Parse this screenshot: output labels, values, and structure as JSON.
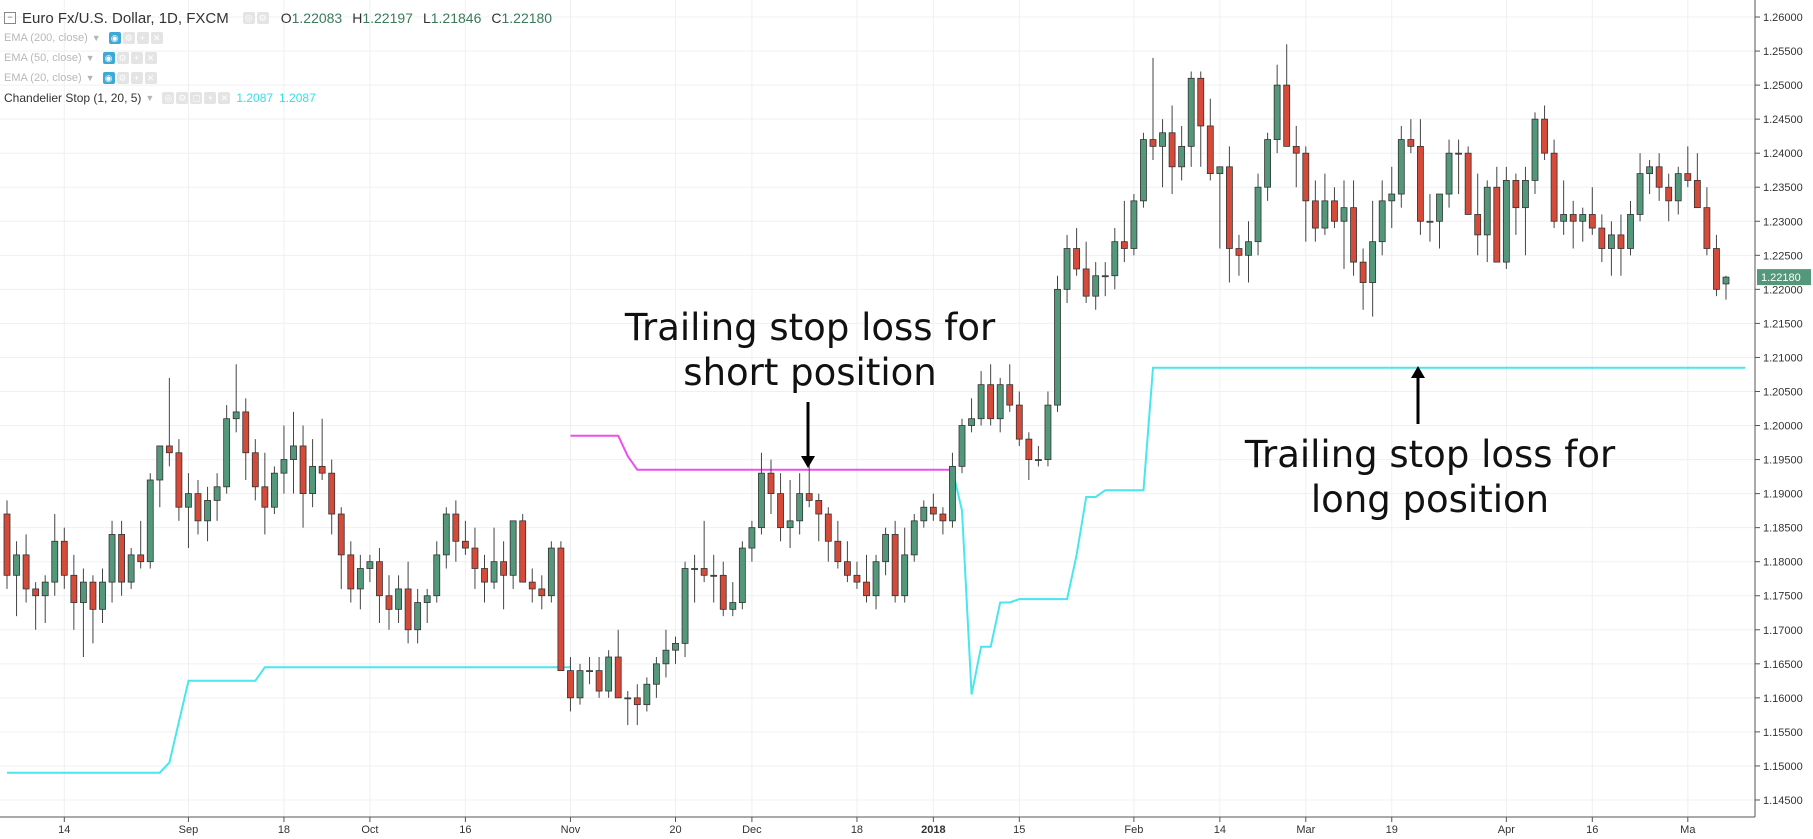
{
  "header": {
    "symbol": "Euro Fx/U.S. Dollar, 1D, FXCM",
    "ohlc": {
      "o_label": "O",
      "o": "1.22083",
      "h_label": "H",
      "h": "1.22197",
      "l_label": "L",
      "l": "1.21846",
      "c_label": "C",
      "c": "1.22180"
    },
    "indicators": [
      {
        "label": "EMA (200, close)"
      },
      {
        "label": "EMA (50, close)"
      },
      {
        "label": "EMA (20, close)"
      }
    ],
    "chandelier": {
      "label": "Chandelier Stop (1, 20, 5)",
      "value1": "1.2087",
      "value2": "1.2087"
    }
  },
  "annotations": {
    "short_line1": "Trailing stop loss for",
    "short_line2": "short position",
    "long_line1": "Trailing stop loss for",
    "long_line2": "long position"
  },
  "colors": {
    "up": "#53987a",
    "down": "#d64a3a",
    "long_stop": "#48e6ee",
    "short_stop": "#ee4eee",
    "grid": "#eef0f3",
    "axis": "#555555",
    "price_tag": "#53987a"
  },
  "chart_data": {
    "type": "candlestick",
    "title": "Euro Fx/U.S. Dollar, 1D, FXCM",
    "ylim": [
      1.1425,
      1.2625
    ],
    "y_ticks": [
      "1.14500",
      "1.15000",
      "1.15500",
      "1.16000",
      "1.16500",
      "1.17000",
      "1.17500",
      "1.18000",
      "1.18500",
      "1.19000",
      "1.19500",
      "1.20000",
      "1.20500",
      "1.21000",
      "1.21500",
      "1.22000",
      "1.22500",
      "1.23000",
      "1.23500",
      "1.24000",
      "1.24500",
      "1.25000",
      "1.25500",
      "1.26000"
    ],
    "x_ticks": [
      {
        "label": "14",
        "idx": 6
      },
      {
        "label": "Sep",
        "idx": 19
      },
      {
        "label": "18",
        "idx": 29
      },
      {
        "label": "Oct",
        "idx": 38
      },
      {
        "label": "16",
        "idx": 48
      },
      {
        "label": "Nov",
        "idx": 59
      },
      {
        "label": "20",
        "idx": 70
      },
      {
        "label": "Dec",
        "idx": 78
      },
      {
        "label": "18",
        "idx": 89
      },
      {
        "label": "2018",
        "idx": 97
      },
      {
        "label": "15",
        "idx": 106
      },
      {
        "label": "Feb",
        "idx": 118
      },
      {
        "label": "14",
        "idx": 127
      },
      {
        "label": "Mar",
        "idx": 136
      },
      {
        "label": "19",
        "idx": 145
      },
      {
        "label": "Apr",
        "idx": 157
      },
      {
        "label": "16",
        "idx": 166
      },
      {
        "label": "Ma",
        "idx": 176
      }
    ],
    "last_price": "1.22180",
    "candles": [
      [
        1.187,
        1.189,
        1.176,
        1.178
      ],
      [
        1.178,
        1.183,
        1.172,
        1.181
      ],
      [
        1.181,
        1.184,
        1.174,
        1.176
      ],
      [
        1.176,
        1.177,
        1.17,
        1.175
      ],
      [
        1.175,
        1.178,
        1.171,
        1.177
      ],
      [
        1.177,
        1.187,
        1.175,
        1.183
      ],
      [
        1.183,
        1.185,
        1.176,
        1.178
      ],
      [
        1.178,
        1.181,
        1.17,
        1.174
      ],
      [
        1.174,
        1.179,
        1.166,
        1.177
      ],
      [
        1.177,
        1.178,
        1.168,
        1.173
      ],
      [
        1.173,
        1.179,
        1.171,
        1.177
      ],
      [
        1.177,
        1.186,
        1.174,
        1.184
      ],
      [
        1.184,
        1.186,
        1.175,
        1.177
      ],
      [
        1.177,
        1.182,
        1.176,
        1.181
      ],
      [
        1.181,
        1.186,
        1.179,
        1.18
      ],
      [
        1.18,
        1.193,
        1.179,
        1.192
      ],
      [
        1.192,
        1.197,
        1.188,
        1.197
      ],
      [
        1.197,
        1.207,
        1.194,
        1.196
      ],
      [
        1.196,
        1.198,
        1.186,
        1.188
      ],
      [
        1.188,
        1.193,
        1.182,
        1.19
      ],
      [
        1.19,
        1.192,
        1.184,
        1.186
      ],
      [
        1.186,
        1.191,
        1.183,
        1.189
      ],
      [
        1.189,
        1.193,
        1.186,
        1.191
      ],
      [
        1.191,
        1.203,
        1.19,
        1.201
      ],
      [
        1.201,
        1.209,
        1.199,
        1.202
      ],
      [
        1.202,
        1.204,
        1.192,
        1.196
      ],
      [
        1.196,
        1.198,
        1.189,
        1.191
      ],
      [
        1.191,
        1.196,
        1.184,
        1.188
      ],
      [
        1.188,
        1.194,
        1.187,
        1.193
      ],
      [
        1.193,
        1.2,
        1.19,
        1.195
      ],
      [
        1.195,
        1.202,
        1.19,
        1.197
      ],
      [
        1.197,
        1.2,
        1.185,
        1.19
      ],
      [
        1.19,
        1.198,
        1.188,
        1.194
      ],
      [
        1.194,
        1.201,
        1.192,
        1.193
      ],
      [
        1.193,
        1.195,
        1.184,
        1.187
      ],
      [
        1.187,
        1.188,
        1.176,
        1.181
      ],
      [
        1.181,
        1.183,
        1.174,
        1.176
      ],
      [
        1.176,
        1.181,
        1.173,
        1.179
      ],
      [
        1.179,
        1.181,
        1.177,
        1.18
      ],
      [
        1.18,
        1.182,
        1.171,
        1.175
      ],
      [
        1.175,
        1.178,
        1.17,
        1.173
      ],
      [
        1.173,
        1.178,
        1.171,
        1.176
      ],
      [
        1.176,
        1.18,
        1.168,
        1.17
      ],
      [
        1.17,
        1.176,
        1.168,
        1.174
      ],
      [
        1.174,
        1.176,
        1.171,
        1.175
      ],
      [
        1.175,
        1.183,
        1.174,
        1.181
      ],
      [
        1.181,
        1.188,
        1.179,
        1.187
      ],
      [
        1.187,
        1.189,
        1.18,
        1.183
      ],
      [
        1.183,
        1.186,
        1.181,
        1.182
      ],
      [
        1.182,
        1.185,
        1.176,
        1.179
      ],
      [
        1.179,
        1.181,
        1.174,
        1.177
      ],
      [
        1.177,
        1.185,
        1.176,
        1.18
      ],
      [
        1.18,
        1.183,
        1.173,
        1.178
      ],
      [
        1.178,
        1.186,
        1.176,
        1.186
      ],
      [
        1.186,
        1.187,
        1.177,
        1.177
      ],
      [
        1.177,
        1.179,
        1.174,
        1.176
      ],
      [
        1.176,
        1.178,
        1.173,
        1.175
      ],
      [
        1.175,
        1.183,
        1.174,
        1.182
      ],
      [
        1.182,
        1.183,
        1.164,
        1.164
      ],
      [
        1.164,
        1.166,
        1.158,
        1.16
      ],
      [
        1.16,
        1.165,
        1.159,
        1.164
      ],
      [
        1.164,
        1.166,
        1.162,
        1.164
      ],
      [
        1.164,
        1.166,
        1.16,
        1.161
      ],
      [
        1.161,
        1.167,
        1.16,
        1.166
      ],
      [
        1.166,
        1.17,
        1.16,
        1.16
      ],
      [
        1.16,
        1.161,
        1.156,
        1.16
      ],
      [
        1.16,
        1.162,
        1.156,
        1.159
      ],
      [
        1.159,
        1.163,
        1.158,
        1.162
      ],
      [
        1.162,
        1.166,
        1.16,
        1.165
      ],
      [
        1.165,
        1.17,
        1.163,
        1.167
      ],
      [
        1.167,
        1.169,
        1.165,
        1.168
      ],
      [
        1.168,
        1.18,
        1.166,
        1.179
      ],
      [
        1.179,
        1.181,
        1.174,
        1.179
      ],
      [
        1.179,
        1.186,
        1.177,
        1.178
      ],
      [
        1.178,
        1.181,
        1.174,
        1.178
      ],
      [
        1.178,
        1.18,
        1.172,
        1.173
      ],
      [
        1.173,
        1.177,
        1.172,
        1.174
      ],
      [
        1.174,
        1.183,
        1.173,
        1.182
      ],
      [
        1.182,
        1.186,
        1.18,
        1.185
      ],
      [
        1.185,
        1.196,
        1.184,
        1.193
      ],
      [
        1.193,
        1.195,
        1.187,
        1.19
      ],
      [
        1.19,
        1.193,
        1.183,
        1.185
      ],
      [
        1.185,
        1.192,
        1.182,
        1.186
      ],
      [
        1.186,
        1.193,
        1.184,
        1.19
      ],
      [
        1.19,
        1.195,
        1.188,
        1.189
      ],
      [
        1.189,
        1.19,
        1.183,
        1.187
      ],
      [
        1.187,
        1.188,
        1.18,
        1.183
      ],
      [
        1.183,
        1.186,
        1.179,
        1.18
      ],
      [
        1.18,
        1.183,
        1.177,
        1.178
      ],
      [
        1.178,
        1.18,
        1.176,
        1.177
      ],
      [
        1.177,
        1.181,
        1.174,
        1.175
      ],
      [
        1.175,
        1.181,
        1.173,
        1.18
      ],
      [
        1.18,
        1.185,
        1.178,
        1.184
      ],
      [
        1.184,
        1.186,
        1.174,
        1.175
      ],
      [
        1.175,
        1.185,
        1.174,
        1.181
      ],
      [
        1.181,
        1.187,
        1.18,
        1.186
      ],
      [
        1.186,
        1.189,
        1.185,
        1.188
      ],
      [
        1.188,
        1.19,
        1.186,
        1.187
      ],
      [
        1.187,
        1.188,
        1.184,
        1.186
      ],
      [
        1.186,
        1.196,
        1.185,
        1.194
      ],
      [
        1.194,
        1.201,
        1.193,
        1.2
      ],
      [
        1.2,
        1.204,
        1.199,
        1.201
      ],
      [
        1.201,
        1.208,
        1.2,
        1.206
      ],
      [
        1.206,
        1.209,
        1.2,
        1.201
      ],
      [
        1.201,
        1.207,
        1.199,
        1.206
      ],
      [
        1.206,
        1.209,
        1.202,
        1.203
      ],
      [
        1.203,
        1.205,
        1.197,
        1.198
      ],
      [
        1.198,
        1.199,
        1.192,
        1.195
      ],
      [
        1.195,
        1.197,
        1.194,
        1.195
      ],
      [
        1.195,
        1.205,
        1.194,
        1.203
      ],
      [
        1.203,
        1.222,
        1.202,
        1.22
      ],
      [
        1.22,
        1.228,
        1.218,
        1.226
      ],
      [
        1.226,
        1.229,
        1.222,
        1.223
      ],
      [
        1.223,
        1.227,
        1.218,
        1.219
      ],
      [
        1.219,
        1.224,
        1.217,
        1.222
      ],
      [
        1.222,
        1.224,
        1.219,
        1.222
      ],
      [
        1.222,
        1.229,
        1.22,
        1.227
      ],
      [
        1.227,
        1.233,
        1.224,
        1.226
      ],
      [
        1.226,
        1.234,
        1.225,
        1.233
      ],
      [
        1.233,
        1.243,
        1.232,
        1.242
      ],
      [
        1.242,
        1.254,
        1.239,
        1.241
      ],
      [
        1.241,
        1.245,
        1.235,
        1.243
      ],
      [
        1.243,
        1.247,
        1.234,
        1.238
      ],
      [
        1.238,
        1.244,
        1.236,
        1.241
      ],
      [
        1.241,
        1.252,
        1.238,
        1.251
      ],
      [
        1.251,
        1.252,
        1.238,
        1.244
      ],
      [
        1.244,
        1.248,
        1.236,
        1.237
      ],
      [
        1.237,
        1.238,
        1.226,
        1.238
      ],
      [
        1.238,
        1.241,
        1.221,
        1.226
      ],
      [
        1.226,
        1.228,
        1.222,
        1.225
      ],
      [
        1.225,
        1.23,
        1.221,
        1.227
      ],
      [
        1.227,
        1.237,
        1.225,
        1.235
      ],
      [
        1.235,
        1.243,
        1.233,
        1.242
      ],
      [
        1.242,
        1.253,
        1.24,
        1.25
      ],
      [
        1.25,
        1.256,
        1.241,
        1.241
      ],
      [
        1.241,
        1.244,
        1.235,
        1.24
      ],
      [
        1.24,
        1.241,
        1.227,
        1.233
      ],
      [
        1.233,
        1.236,
        1.227,
        1.229
      ],
      [
        1.229,
        1.237,
        1.228,
        1.233
      ],
      [
        1.233,
        1.235,
        1.229,
        1.23
      ],
      [
        1.23,
        1.236,
        1.223,
        1.232
      ],
      [
        1.232,
        1.236,
        1.222,
        1.224
      ],
      [
        1.224,
        1.226,
        1.217,
        1.221
      ],
      [
        1.221,
        1.233,
        1.216,
        1.227
      ],
      [
        1.227,
        1.236,
        1.225,
        1.233
      ],
      [
        1.233,
        1.238,
        1.229,
        1.234
      ],
      [
        1.234,
        1.244,
        1.232,
        1.242
      ],
      [
        1.242,
        1.245,
        1.24,
        1.241
      ],
      [
        1.241,
        1.245,
        1.228,
        1.23
      ],
      [
        1.23,
        1.234,
        1.227,
        1.23
      ],
      [
        1.23,
        1.233,
        1.226,
        1.234
      ],
      [
        1.234,
        1.242,
        1.232,
        1.24
      ],
      [
        1.24,
        1.242,
        1.234,
        1.24
      ],
      [
        1.24,
        1.241,
        1.231,
        1.231
      ],
      [
        1.231,
        1.237,
        1.225,
        1.228
      ],
      [
        1.228,
        1.236,
        1.224,
        1.235
      ],
      [
        1.235,
        1.238,
        1.224,
        1.224
      ],
      [
        1.224,
        1.238,
        1.223,
        1.236
      ],
      [
        1.236,
        1.237,
        1.228,
        1.232
      ],
      [
        1.232,
        1.238,
        1.225,
        1.236
      ],
      [
        1.236,
        1.246,
        1.234,
        1.245
      ],
      [
        1.245,
        1.247,
        1.239,
        1.24
      ],
      [
        1.24,
        1.242,
        1.229,
        1.23
      ],
      [
        1.23,
        1.236,
        1.228,
        1.231
      ],
      [
        1.231,
        1.233,
        1.226,
        1.23
      ],
      [
        1.23,
        1.232,
        1.227,
        1.231
      ],
      [
        1.231,
        1.235,
        1.228,
        1.229
      ],
      [
        1.229,
        1.231,
        1.224,
        1.226
      ],
      [
        1.226,
        1.23,
        1.222,
        1.228
      ],
      [
        1.228,
        1.231,
        1.222,
        1.226
      ],
      [
        1.226,
        1.233,
        1.225,
        1.231
      ],
      [
        1.231,
        1.24,
        1.23,
        1.237
      ],
      [
        1.237,
        1.239,
        1.234,
        1.238
      ],
      [
        1.238,
        1.24,
        1.233,
        1.235
      ],
      [
        1.235,
        1.237,
        1.23,
        1.233
      ],
      [
        1.233,
        1.238,
        1.231,
        1.237
      ],
      [
        1.237,
        1.241,
        1.235,
        1.236
      ],
      [
        1.236,
        1.24,
        1.233,
        1.232
      ],
      [
        1.232,
        1.235,
        1.225,
        1.226
      ],
      [
        1.226,
        1.228,
        1.219,
        1.22
      ],
      [
        1.2208,
        1.222,
        1.2185,
        1.2218
      ]
    ],
    "series": [
      {
        "type": "line",
        "points": [
          [
            0,
            1.149
          ],
          [
            16,
            1.149
          ],
          [
            17,
            1.1505
          ],
          [
            19,
            1.1625
          ],
          [
            26,
            1.1625
          ],
          [
            27,
            1.1645
          ],
          [
            59,
            1.1645
          ]
        ]
      },
      {
        "type": "line",
        "points": [
          [
            59,
            1.1985
          ],
          [
            64,
            1.1985
          ],
          [
            65,
            1.1955
          ],
          [
            66,
            1.1935
          ],
          [
            99,
            1.1935
          ]
        ]
      },
      {
        "type": "line",
        "points": [
          [
            99,
            1.1935
          ],
          [
            100,
            1.1875
          ],
          [
            101,
            1.1605
          ],
          [
            102,
            1.1675
          ],
          [
            103,
            1.1675
          ],
          [
            104,
            1.174
          ],
          [
            105,
            1.174
          ],
          [
            106,
            1.1745
          ],
          [
            111,
            1.1745
          ],
          [
            112,
            1.181
          ],
          [
            113,
            1.1895
          ],
          [
            114,
            1.1895
          ],
          [
            115,
            1.1905
          ],
          [
            119,
            1.1905
          ],
          [
            120,
            1.2085
          ],
          [
            121,
            1.2085
          ],
          [
            182,
            1.2085
          ]
        ]
      }
    ]
  }
}
